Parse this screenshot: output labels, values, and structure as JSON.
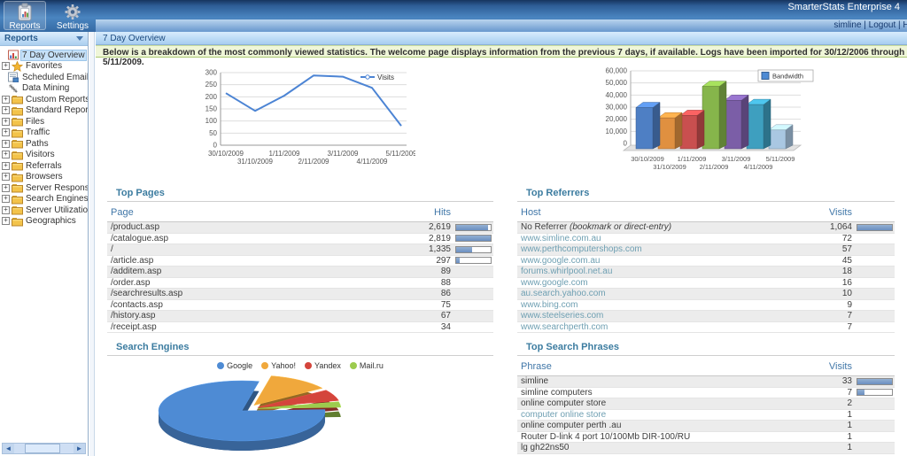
{
  "app": {
    "title": "SmarterStats Enterprise 4",
    "user_links": [
      "simline",
      "Logout",
      "Help"
    ]
  },
  "toolbar": {
    "buttons": [
      {
        "label": "Reports",
        "icon": "reports-icon",
        "active": true
      },
      {
        "label": "Settings",
        "icon": "settings-icon",
        "active": false
      }
    ]
  },
  "sidebar": {
    "header": "Reports",
    "collapse_icon": "chevron-down-icon",
    "items": [
      {
        "label": "7 Day Overview",
        "icon": "chart-report-icon",
        "expandable": false,
        "selected": true
      },
      {
        "label": "Favorites",
        "icon": "star-icon",
        "expandable": true,
        "selected": false
      },
      {
        "label": "Scheduled Email Reports",
        "icon": "email-report-icon",
        "expandable": false,
        "selected": false
      },
      {
        "label": "Data Mining",
        "icon": "data-mining-icon",
        "expandable": false,
        "selected": false
      },
      {
        "label": "Custom Reports",
        "icon": "folder-icon",
        "expandable": true,
        "selected": false
      },
      {
        "label": "Standard Reports",
        "icon": "folder-icon",
        "expandable": true,
        "selected": false
      },
      {
        "label": "Files",
        "icon": "folder-icon",
        "expandable": true,
        "selected": false
      },
      {
        "label": "Traffic",
        "icon": "folder-icon",
        "expandable": true,
        "selected": false
      },
      {
        "label": "Paths",
        "icon": "folder-icon",
        "expandable": true,
        "selected": false
      },
      {
        "label": "Visitors",
        "icon": "folder-icon",
        "expandable": true,
        "selected": false
      },
      {
        "label": "Referrals",
        "icon": "folder-icon",
        "expandable": true,
        "selected": false
      },
      {
        "label": "Browsers",
        "icon": "folder-icon",
        "expandable": true,
        "selected": false
      },
      {
        "label": "Server Responses",
        "icon": "folder-icon",
        "expandable": true,
        "selected": false
      },
      {
        "label": "Search Engines",
        "icon": "folder-icon",
        "expandable": true,
        "selected": false
      },
      {
        "label": "Server Utilization",
        "icon": "folder-icon",
        "expandable": true,
        "selected": false
      },
      {
        "label": "Geographics",
        "icon": "folder-icon",
        "expandable": true,
        "selected": false
      }
    ]
  },
  "page": {
    "title": "7 Day Overview",
    "banner": "Below is a breakdown of the most commonly viewed statistics. The welcome page displays information from the previous 7 days, if available. Logs have been imported for 30/12/2006 through 5/11/2009."
  },
  "sections": {
    "top_pages": {
      "title": "Top Pages",
      "columns": [
        "Page",
        "Hits"
      ],
      "rows": [
        {
          "label": "/product.asp",
          "value": "2,619",
          "bar": 0.93
        },
        {
          "label": "/catalogue.asp",
          "value": "2,819",
          "bar": 1
        },
        {
          "label": "/",
          "value": "1,335",
          "bar": 0.47
        },
        {
          "label": "/article.asp",
          "value": "297",
          "bar": 0.11
        },
        {
          "label": "/additem.asp",
          "value": "89"
        },
        {
          "label": "/order.asp",
          "value": "88"
        },
        {
          "label": "/searchresults.asp",
          "value": "86"
        },
        {
          "label": "/contacts.asp",
          "value": "75"
        },
        {
          "label": "/history.asp",
          "value": "67"
        },
        {
          "label": "/receipt.asp",
          "value": "34"
        }
      ]
    },
    "top_referrers": {
      "title": "Top Referrers",
      "columns": [
        "Host",
        "Visits"
      ],
      "rows": [
        {
          "label": "No Referrer ",
          "note": "(bookmark or direct-entry)",
          "value": "1,064",
          "bar": 1
        },
        {
          "label": "www.simline.com.au",
          "value": "72",
          "link": true
        },
        {
          "label": "www.perthcomputershops.com",
          "value": "57",
          "link": true
        },
        {
          "label": "www.google.com.au",
          "value": "45",
          "link": true
        },
        {
          "label": "forums.whirlpool.net.au",
          "value": "18",
          "link": true
        },
        {
          "label": "www.google.com",
          "value": "16",
          "link": true
        },
        {
          "label": "au.search.yahoo.com",
          "value": "10",
          "link": true
        },
        {
          "label": "www.bing.com",
          "value": "9",
          "link": true
        },
        {
          "label": "www.steelseries.com",
          "value": "7",
          "link": true
        },
        {
          "label": "www.searchperth.com",
          "value": "7",
          "link": true
        }
      ]
    },
    "search_engines": {
      "title": "Search Engines"
    },
    "top_search_phrases": {
      "title": "Top Search Phrases",
      "columns": [
        "Phrase",
        "Visits"
      ],
      "rows": [
        {
          "label": "simline",
          "value": "33",
          "bar": 1
        },
        {
          "label": "simline computers",
          "value": "7",
          "bar": 0.21
        },
        {
          "label": "online computer store",
          "value": "2"
        },
        {
          "label": "computer online store",
          "value": "1",
          "link": true
        },
        {
          "label": "online computer perth .au",
          "value": "1"
        },
        {
          "label": "Router D-link 4 port 10/100Mb DIR-100/RU",
          "value": "1"
        },
        {
          "label": "lg gh22ns50",
          "value": "1"
        }
      ]
    }
  },
  "chart_data": [
    {
      "type": "line",
      "categories": [
        "30/10/2009",
        "31/10/2009",
        "1/11/2009",
        "2/11/2009",
        "3/11/2009",
        "4/11/2009",
        "5/11/2009"
      ],
      "series": [
        {
          "name": "Visits",
          "values": [
            215,
            142,
            205,
            288,
            283,
            237,
            80
          ],
          "color": "#4c84d4"
        }
      ],
      "ylim": [
        0,
        300
      ],
      "ytick": 50,
      "grid": true,
      "legend_position": "top-right"
    },
    {
      "type": "bar",
      "categories": [
        "30/10/2009",
        "31/10/2009",
        "1/11/2009",
        "2/11/2009",
        "3/11/2009",
        "4/11/2009",
        "5/11/2009"
      ],
      "series": [
        {
          "name": "Bandwidth",
          "values": [
            34000,
            25500,
            27500,
            51500,
            40000,
            36500,
            15500
          ]
        }
      ],
      "bar_colors": [
        "#4e7fc4",
        "#e09040",
        "#c94f4f",
        "#86b54b",
        "#7b5ea7",
        "#3e9fbf",
        "#a9c7e2"
      ],
      "legend_color": "#4e8bd4",
      "ylim": [
        0,
        60000
      ],
      "ytick": 10000,
      "grid": true,
      "legend_position": "top-right"
    },
    {
      "type": "pie",
      "title": "Search Engines",
      "labels": [
        "Google",
        "Yahoo!",
        "Yandex",
        "Mail.ru"
      ],
      "values": [
        79,
        12,
        6,
        3
      ],
      "colors": [
        "#4e8bd4",
        "#f0a83c",
        "#d4453c",
        "#9ccb4e"
      ],
      "legend_position": "top"
    }
  ]
}
